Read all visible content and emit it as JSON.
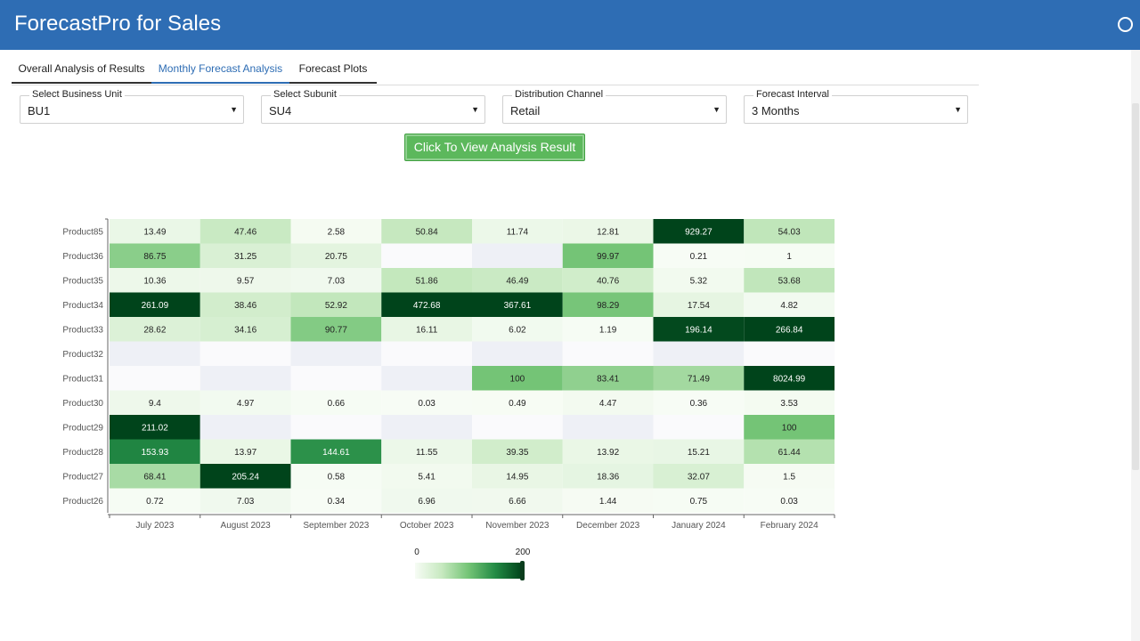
{
  "app": {
    "title": "ForecastPro for Sales"
  },
  "tabs": [
    {
      "label": "Overall Analysis of Results"
    },
    {
      "label": "Monthly Forecast Analysis"
    },
    {
      "label": "Forecast Plots"
    }
  ],
  "filters": [
    {
      "label": "Select Business Unit",
      "value": "BU1"
    },
    {
      "label": "Select Subunit",
      "value": "SU4"
    },
    {
      "label": "Distribution Channel",
      "value": "Retail"
    },
    {
      "label": "Forecast Interval",
      "value": "3 Months"
    }
  ],
  "action_button": {
    "label": "Click To View Analysis Result"
  },
  "colorbar": {
    "min_label": "0",
    "max_label": "200"
  },
  "colors": {
    "header": "#2e6db4",
    "button": "#5cb85c",
    "heat_low": "#f7fcf5",
    "heat_high": "#00441b"
  },
  "chart_data": {
    "type": "heatmap",
    "columns": [
      "July 2023",
      "August 2023",
      "September 2023",
      "October 2023",
      "November 2023",
      "December 2023",
      "January 2024",
      "February 2024"
    ],
    "rows": [
      "Product85",
      "Product36",
      "Product35",
      "Product34",
      "Product33",
      "Product32",
      "Product31",
      "Product30",
      "Product29",
      "Product28",
      "Product27",
      "Product26"
    ],
    "values": [
      [
        "13.49",
        "47.46",
        "2.58",
        "50.84",
        "11.74",
        "12.81",
        "929.27",
        "54.03"
      ],
      [
        "86.75",
        "31.25",
        "20.75",
        "",
        "",
        "99.97",
        "0.21",
        "1"
      ],
      [
        "10.36",
        "9.57",
        "7.03",
        "51.86",
        "46.49",
        "40.76",
        "5.32",
        "53.68"
      ],
      [
        "261.09",
        "38.46",
        "52.92",
        "472.68",
        "367.61",
        "98.29",
        "17.54",
        "4.82"
      ],
      [
        "28.62",
        "34.16",
        "90.77",
        "16.11",
        "6.02",
        "1.19",
        "196.14",
        "266.84"
      ],
      [
        "",
        "",
        "",
        "",
        "",
        "",
        "",
        ""
      ],
      [
        "",
        "",
        "",
        "",
        "100",
        "83.41",
        "71.49",
        "8024.99"
      ],
      [
        "9.4",
        "4.97",
        "0.66",
        "0.03",
        "0.49",
        "4.47",
        "0.36",
        "3.53"
      ],
      [
        "211.02",
        "",
        "",
        "",
        "",
        "",
        "",
        "100"
      ],
      [
        "153.93",
        "13.97",
        "144.61",
        "11.55",
        "39.35",
        "13.92",
        "15.21",
        "61.44"
      ],
      [
        "68.41",
        "205.24",
        "0.58",
        "5.41",
        "14.95",
        "18.36",
        "32.07",
        "1.5"
      ],
      [
        "0.72",
        "7.03",
        "0.34",
        "6.96",
        "6.66",
        "1.44",
        "0.75",
        "0.03"
      ]
    ],
    "color_range": [
      0,
      200
    ],
    "missing_color": "#eef0f6"
  }
}
